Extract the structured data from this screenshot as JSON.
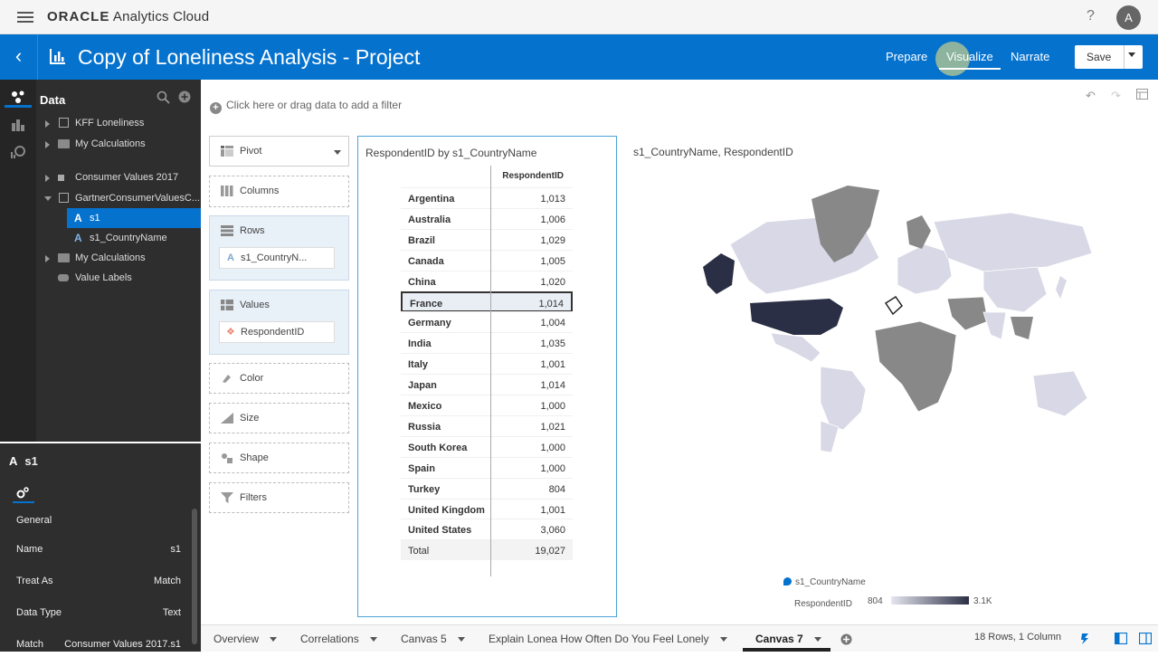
{
  "app": {
    "brand_oracle": "ORACLE",
    "brand_product": "Analytics Cloud",
    "help": "?",
    "avatar": "A"
  },
  "header": {
    "title": "Copy of Loneliness Analysis - Project",
    "modes": [
      "Prepare",
      "Visualize",
      "Narrate"
    ],
    "active_mode": "Visualize",
    "save_label": "Save"
  },
  "data_panel": {
    "title": "Data",
    "items": [
      {
        "label": "KFF Loneliness"
      },
      {
        "label": "My Calculations"
      },
      {
        "label": "Consumer Values 2017"
      },
      {
        "label": "GartnerConsumerValuesC..."
      },
      {
        "label": "s1"
      },
      {
        "label": "s1_CountryName"
      },
      {
        "label": "My Calculations"
      },
      {
        "label": "Value Labels"
      }
    ]
  },
  "properties": {
    "element": "s1",
    "section": "General",
    "rows": [
      {
        "key": "Name",
        "value": "s1"
      },
      {
        "key": "Treat As",
        "value": "Match"
      },
      {
        "key": "Data Type",
        "value": "Text"
      },
      {
        "key": "Match",
        "value": "Consumer Values 2017.s1"
      }
    ]
  },
  "filter": {
    "placeholder": "Click here or drag data to add a filter"
  },
  "grammar": {
    "viz_type": "Pivot",
    "columns": "Columns",
    "rows": "Rows",
    "rows_chip": "s1_CountryN...",
    "values": "Values",
    "values_chip": "RespondentID",
    "color": "Color",
    "size": "Size",
    "shape": "Shape",
    "filters": "Filters"
  },
  "pivot": {
    "title": "RespondentID by s1_CountryName",
    "column_header": "RespondentID",
    "rows": [
      {
        "country": "Argentina",
        "value": "1,013"
      },
      {
        "country": "Australia",
        "value": "1,006"
      },
      {
        "country": "Brazil",
        "value": "1,029"
      },
      {
        "country": "Canada",
        "value": "1,005"
      },
      {
        "country": "China",
        "value": "1,020"
      },
      {
        "country": "France",
        "value": "1,014"
      },
      {
        "country": "Germany",
        "value": "1,004"
      },
      {
        "country": "India",
        "value": "1,035"
      },
      {
        "country": "Italy",
        "value": "1,001"
      },
      {
        "country": "Japan",
        "value": "1,014"
      },
      {
        "country": "Mexico",
        "value": "1,000"
      },
      {
        "country": "Russia",
        "value": "1,021"
      },
      {
        "country": "South Korea",
        "value": "1,000"
      },
      {
        "country": "Spain",
        "value": "1,000"
      },
      {
        "country": "Turkey",
        "value": "804"
      },
      {
        "country": "United Kingdom",
        "value": "1,001"
      },
      {
        "country": "United States",
        "value": "3,060"
      }
    ],
    "total_label": "Total",
    "total_value": "19,027",
    "selected": "France"
  },
  "map": {
    "title": "s1_CountryName, RespondentID",
    "legend_series": "s1_CountryName",
    "legend_measure": "RespondentID",
    "legend_min": "804",
    "legend_max": "3.1K",
    "color_low": "#d8d8e6",
    "color_high": "#2b2f45"
  },
  "tabs": {
    "items": [
      "Overview",
      "Correlations",
      "Canvas 5",
      "Explain Lonea How Often Do You Feel Lonely",
      "Canvas 7"
    ],
    "active": "Canvas 7",
    "row_count": "18 Rows, 1 Column"
  }
}
